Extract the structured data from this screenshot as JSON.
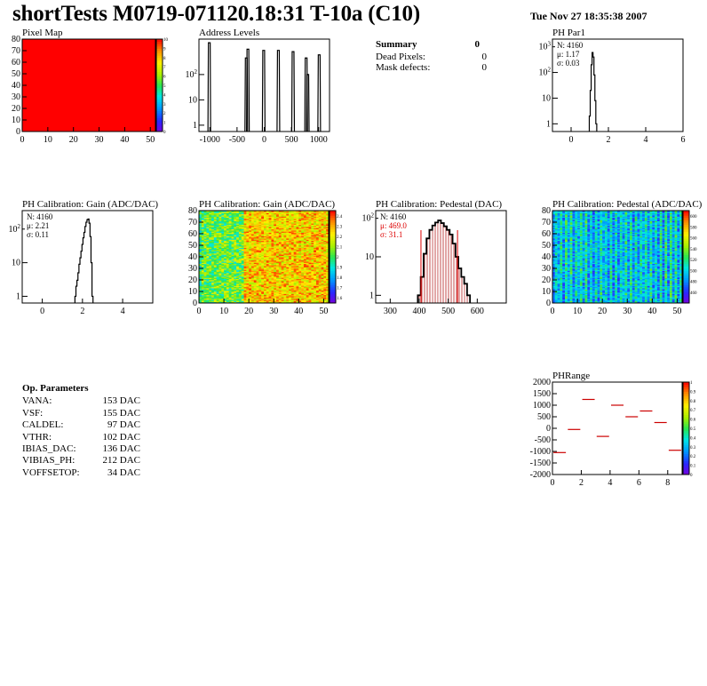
{
  "header": {
    "title": "shortTests M0719-071120.18:31 T-10a (C10)",
    "date": "Tue Nov 27 18:35:38 2007"
  },
  "summary": {
    "title": "Summary",
    "title_value": "0",
    "rows": [
      {
        "label": "Dead Pixels:",
        "value": "0"
      },
      {
        "label": "Mask defects:",
        "value": "0"
      }
    ]
  },
  "op_params": {
    "title": "Op. Parameters",
    "rows": [
      {
        "name": "VANA:",
        "value": "153 DAC"
      },
      {
        "name": "VSF:",
        "value": "155 DAC"
      },
      {
        "name": "CALDEL:",
        "value": "97 DAC"
      },
      {
        "name": "VTHR:",
        "value": "102 DAC"
      },
      {
        "name": "IBIAS_DAC:",
        "value": "136 DAC"
      },
      {
        "name": "VIBIAS_PH:",
        "value": "212 DAC"
      },
      {
        "name": "VOFFSETOP:",
        "value": "34 DAC"
      }
    ]
  },
  "colors": {
    "hist_line": "#000000",
    "stat_red": "#dd0000",
    "pixelmap_fill": "#ff0000"
  },
  "chart_data": [
    {
      "id": "pixel-map",
      "type": "heatmap",
      "title": "Pixel Map",
      "xlim": [
        0,
        52
      ],
      "ylim": [
        0,
        80
      ],
      "xticks": [
        "0",
        "10",
        "20",
        "30",
        "40",
        "50"
      ],
      "yticks": [
        "0",
        "10",
        "20",
        "30",
        "40",
        "50",
        "60",
        "70",
        "80"
      ],
      "uniform_value": 10,
      "zlim": [
        0,
        10
      ],
      "z_ticks": [
        "0",
        "1",
        "2",
        "3",
        "4",
        "5",
        "6",
        "7",
        "8",
        "9",
        "10"
      ]
    },
    {
      "id": "address-levels",
      "type": "bar",
      "title": "Address Levels",
      "log_y": true,
      "xlim": [
        -1200,
        1200
      ],
      "xticks": [
        "-1000",
        "-500",
        "0",
        "500",
        "1000"
      ],
      "yticks": [
        "1",
        "10",
        "10^2"
      ],
      "peaks": [
        {
          "x": -1010,
          "y": 1800
        },
        {
          "x": -330,
          "y": 450
        },
        {
          "x": -300,
          "y": 1000
        },
        {
          "x": -10,
          "y": 900
        },
        {
          "x": 260,
          "y": 900
        },
        {
          "x": 530,
          "y": 800
        },
        {
          "x": 770,
          "y": 450
        },
        {
          "x": 800,
          "y": 100
        },
        {
          "x": 1010,
          "y": 600
        }
      ]
    },
    {
      "id": "ph-par1",
      "type": "histogram",
      "title": "PH Par1",
      "log_y": true,
      "xlim": [
        -1,
        6
      ],
      "xticks": [
        "0",
        "2",
        "4",
        "6"
      ],
      "yticks": [
        "1",
        "10",
        "10^2",
        "10^3"
      ],
      "stats": {
        "n": "N: 4160",
        "mean": "μ: 1.17",
        "sigma": "σ: 0.03"
      },
      "x": [
        1.0,
        1.05,
        1.1,
        1.15,
        1.2,
        1.25,
        1.3,
        1.35
      ],
      "values": [
        2,
        20,
        200,
        600,
        400,
        80,
        8,
        1
      ]
    },
    {
      "id": "ph-gain-hist",
      "type": "histogram",
      "title": "PH Calibration: Gain (ADC/DAC)",
      "log_y": true,
      "xlim": [
        -1,
        5.5
      ],
      "xticks": [
        "0",
        "2",
        "4"
      ],
      "yticks": [
        "1",
        "10",
        "10^2"
      ],
      "stats": {
        "n": "N: 4160",
        "mean": "μ: 2.21",
        "sigma": "σ: 0.11"
      },
      "x": [
        1.65,
        1.7,
        1.75,
        1.8,
        1.85,
        1.9,
        1.95,
        2.0,
        2.05,
        2.1,
        2.15,
        2.2,
        2.25,
        2.3,
        2.35,
        2.4,
        2.45,
        2.5
      ],
      "values": [
        1,
        2,
        3,
        5,
        9,
        14,
        22,
        35,
        55,
        80,
        120,
        160,
        190,
        200,
        150,
        60,
        10,
        1
      ]
    },
    {
      "id": "ph-gain-map",
      "type": "heatmap",
      "title": "PH Calibration: Gain (ADC/DAC)",
      "xlim": [
        0,
        52
      ],
      "ylim": [
        0,
        80
      ],
      "xticks": [
        "0",
        "10",
        "20",
        "30",
        "40",
        "50"
      ],
      "yticks": [
        "0",
        "10",
        "20",
        "30",
        "40",
        "50",
        "60",
        "70",
        "80"
      ],
      "zlim": [
        1.55,
        2.45
      ],
      "z_ticks": [
        "1.6",
        "1.7",
        "1.8",
        "1.9",
        "2",
        "2.1",
        "2.2",
        "2.3",
        "2.4"
      ]
    },
    {
      "id": "ph-pedestal-hist",
      "type": "histogram",
      "title": "PH Calibration: Pedestal (DAC)",
      "log_y": true,
      "xlim": [
        250,
        700
      ],
      "xticks": [
        "300",
        "400",
        "500",
        "600"
      ],
      "yticks": [
        "1",
        "10",
        "10^2"
      ],
      "stats": {
        "n": "N: 4160",
        "mean": "μ: 469.0",
        "sigma": "σ: 31.1"
      },
      "cut_lines": [
        406,
        532
      ],
      "x": [
        400,
        410,
        420,
        430,
        440,
        450,
        460,
        470,
        480,
        490,
        500,
        510,
        520,
        530,
        540,
        550,
        560,
        570
      ],
      "values": [
        1,
        3,
        12,
        30,
        50,
        65,
        78,
        88,
        75,
        62,
        50,
        38,
        22,
        10,
        5,
        3,
        2,
        1
      ]
    },
    {
      "id": "ph-pedestal-map",
      "type": "heatmap",
      "title": "PH Calibration: Pedestal (ADC/DAC)",
      "xlim": [
        0,
        52
      ],
      "ylim": [
        0,
        80
      ],
      "xticks": [
        "0",
        "10",
        "20",
        "30",
        "40",
        "50"
      ],
      "yticks": [
        "0",
        "10",
        "20",
        "30",
        "40",
        "50",
        "60",
        "70",
        "80"
      ],
      "zlim": [
        440,
        610
      ],
      "z_ticks": [
        "460",
        "480",
        "500",
        "520",
        "540",
        "560",
        "580",
        "600"
      ]
    },
    {
      "id": "ph-range",
      "type": "scatter",
      "title": "PHRange",
      "xlim": [
        0,
        9
      ],
      "ylim": [
        -2000,
        2000
      ],
      "xticks": [
        "0",
        "2",
        "4",
        "6",
        "8"
      ],
      "yticks": [
        "-2000",
        "-1500",
        "-1000",
        "-500",
        "0",
        "500",
        "1000",
        "1500",
        "2000"
      ],
      "x": [
        0.5,
        1.5,
        2.5,
        3.5,
        4.5,
        5.5,
        6.5,
        7.5,
        8.5
      ],
      "y": [
        -1050,
        -50,
        1250,
        -350,
        1000,
        500,
        750,
        250,
        -950
      ],
      "zlim": [
        0,
        1
      ],
      "z_ticks": [
        "0",
        "0.1",
        "0.2",
        "0.3",
        "0.4",
        "0.5",
        "0.6",
        "0.7",
        "0.8",
        "0.9",
        "1"
      ]
    }
  ]
}
